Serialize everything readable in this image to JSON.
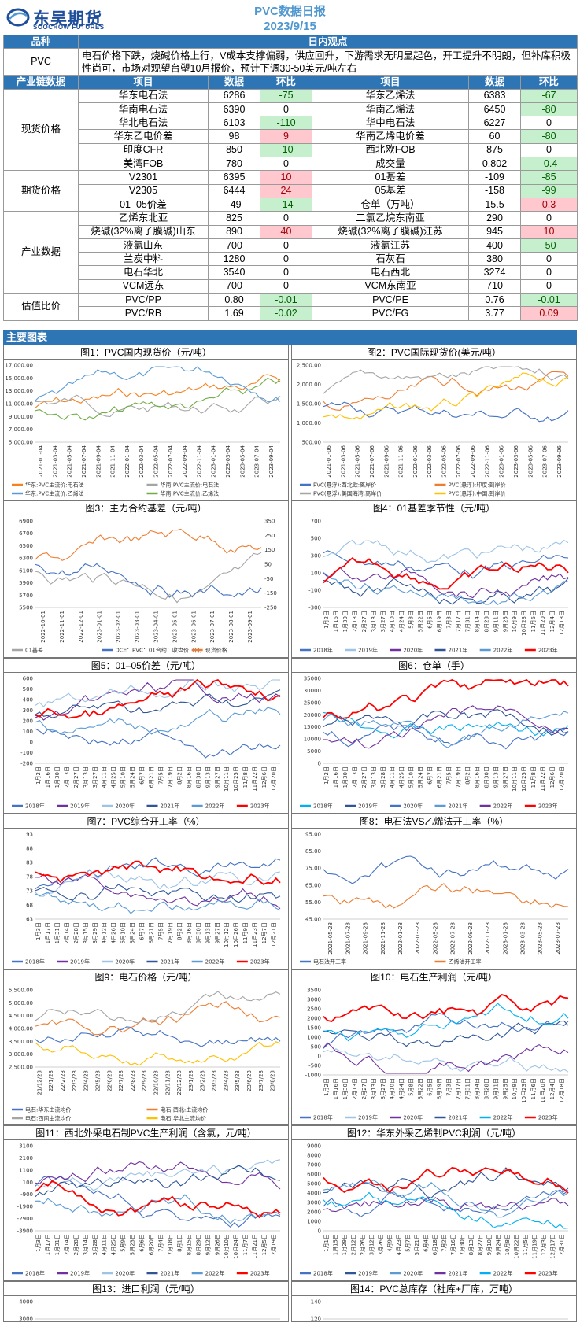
{
  "header": {
    "logo_cn": "东吴期货",
    "logo_en": "SOOCHOW FUTURES",
    "title": "PVC数据日报",
    "date": "2023/9/15"
  },
  "colors": {
    "brand": "#1f4e9a",
    "bar": "#2e75b6",
    "title": "#4f97cf",
    "up": "#ffc7ce",
    "down": "#c6efce"
  },
  "summary": {
    "col1": "品种",
    "col2": "日内观点",
    "product": "PVC",
    "view": "电石价格下跌，烧碱价格上行，V成本支撑偏弱，供应回升，下游需求无明显起色，开工提升不明朗，但补库积极性尚可，市场对观望台塑10月报价，预计下调30-50美元/吨左右"
  },
  "table": {
    "headers": [
      "产业链数据",
      "项目",
      "数据",
      "环比",
      "项目",
      "数据",
      "环比"
    ],
    "groups": [
      {
        "name": "现货价格",
        "rows": [
          [
            "华东电石法",
            "6286",
            "-75",
            "华东乙烯法",
            "6383",
            "-67"
          ],
          [
            "华南电石法",
            "6390",
            "0",
            "华南乙烯法",
            "6450",
            "-80"
          ],
          [
            "华北电石法",
            "6103",
            "-110",
            "华中电石法",
            "6227",
            "0"
          ],
          [
            "华东乙电价差",
            "98",
            "9",
            "华南乙烯电价差",
            "60",
            "-80"
          ],
          [
            "印度CFR",
            "850",
            "-10",
            "西北欧FOB",
            "875",
            "0"
          ],
          [
            "美湾FOB",
            "780",
            "0",
            "成交量",
            "0.802",
            "-0.4"
          ]
        ]
      },
      {
        "name": "期货价格",
        "rows": [
          [
            "V2301",
            "6395",
            "10",
            "01基差",
            "-109",
            "-85"
          ],
          [
            "V2305",
            "6444",
            "24",
            "05基差",
            "-158",
            "-99"
          ],
          [
            "01–05价差",
            "-49",
            "-14",
            "仓单（万吨）",
            "15.5",
            "0.3"
          ]
        ]
      },
      {
        "name": "产业数据",
        "rows": [
          [
            "乙烯东北亚",
            "825",
            "0",
            "二氯乙烷东南亚",
            "290",
            "0"
          ],
          [
            "烧碱(32%离子膜碱)山东",
            "890",
            "40",
            "烧碱(32%离子膜碱)江苏",
            "945",
            "10"
          ],
          [
            "液氯山东",
            "700",
            "0",
            "液氯江苏",
            "400",
            "-50"
          ],
          [
            "兰炭中料",
            "1280",
            "0",
            "石灰石",
            "380",
            "0"
          ],
          [
            "电石华北",
            "3540",
            "0",
            "电石西北",
            "3274",
            "0"
          ],
          [
            "VCM远东",
            "700",
            "0",
            "VCM东南亚",
            "710",
            "0"
          ]
        ]
      },
      {
        "name": "估值比价",
        "rows": [
          [
            "PVC/PP",
            "0.80",
            "-0.01",
            "PVC/PE",
            "0.76",
            "-0.01"
          ],
          [
            "PVC/RB",
            "1.69",
            "-0.02",
            "PVC/FG",
            "3.77",
            "0.09"
          ]
        ]
      }
    ],
    "cell_colors": {
      "现货价格": [
        [
          "down",
          "down"
        ],
        [
          "",
          "down"
        ],
        [
          "down",
          ""
        ],
        [
          "up",
          "down"
        ],
        [
          "down",
          ""
        ],
        [
          "",
          "down"
        ]
      ],
      "期货价格": [
        [
          "up",
          "down"
        ],
        [
          "up",
          "down"
        ],
        [
          "down",
          "up"
        ]
      ],
      "产业数据": [
        [
          "",
          ""
        ],
        [
          "up",
          "up"
        ],
        [
          "",
          "down"
        ],
        [
          "",
          ""
        ],
        [
          "",
          ""
        ],
        [
          "",
          ""
        ]
      ],
      "估值比价": [
        [
          "down",
          "down"
        ],
        [
          "down",
          "up"
        ]
      ]
    }
  },
  "section_title": "主要图表",
  "charts": [
    {
      "title": "图1：PVC国内现货价（元/吨）",
      "yticks": [
        "17,000.00",
        "15,000.00",
        "13,000.00",
        "11,000.00",
        "9,000.00",
        "7,000.00",
        "5,000.00"
      ],
      "xticks": [
        "2021-01-04",
        "2021-03-04",
        "2021-05-04",
        "2021-07-04",
        "2021-09-04",
        "2021-11-04",
        "2022-01-04",
        "2022-03-04",
        "2022-05-04",
        "2022-07-04",
        "2022-09-04",
        "2022-11-04",
        "2023-01-04",
        "2023-03-04",
        "2023-05-04",
        "2023-07-04",
        "2023-09-04"
      ],
      "legend": [
        "华东:PVC主流价:电石法",
        "华南:PVC主流价:电石法",
        "华东:PVC主流价:乙烯法",
        "华南:PVC主流价:乙烯法"
      ],
      "legend_colors": [
        "#f58220",
        "#a5a5a5",
        "#5b9bd5",
        "#70ad47"
      ]
    },
    {
      "title": "图2：PVC国际现货价(美元/吨）",
      "yticks": [
        "2,500.00",
        "2,000.00",
        "1,500.00",
        "1,000.00",
        "500.00"
      ],
      "xticks": [
        "2021-01-06",
        "2021-03-06",
        "2021-05-06",
        "2021-07-06",
        "2021-09-06",
        "2021-11-06",
        "2022-01-06",
        "2022-03-06",
        "2022-05-06",
        "2022-07-06",
        "2022-09-06",
        "2022-11-06",
        "2023-01-06",
        "2023-03-06",
        "2023-05-06",
        "2023-07-06",
        "2023-09-06"
      ],
      "legend": [
        "PVC(悬浮):西北欧:离岸价",
        "PVC(悬浮):印度:到岸价",
        "PVC(悬浮):美国海湾:离岸价",
        "PVC(悬浮):中国:到岸价"
      ],
      "legend_colors": [
        "#4472c4",
        "#ed7d31",
        "#a5a5a5",
        "#ffc000"
      ]
    },
    {
      "title": "图3：主力合约基差（元/吨）",
      "yticks": [
        "6900",
        "6700",
        "6500",
        "6300",
        "6100",
        "5900",
        "5700",
        "5500"
      ],
      "yticks_right": [
        "350",
        "250",
        "150",
        "50",
        "-50",
        "-150",
        "-250"
      ],
      "xticks": [
        "2022-10-01",
        "2022-11-01",
        "2022-12-01",
        "2023-01-01",
        "2023-02-01",
        "2023-03-01",
        "2023-04-01",
        "2023-05-01",
        "2023-06-01",
        "2023-07-01",
        "2023-08-01",
        "2023-09-01"
      ],
      "legend": [
        "01基差",
        "DCE：PVC：01合约：收盘价（日）",
        "现货价格"
      ],
      "legend_colors": [
        "#a5a5a5",
        "#4472c4",
        "#ed7d31"
      ]
    },
    {
      "title": "图4：01基差季节性（元/吨）",
      "yticks": [
        "700",
        "500",
        "300",
        "100",
        "-100",
        "-300"
      ],
      "xticks": [
        "1月2日",
        "1月16日",
        "1月30日",
        "2月13日",
        "2月27日",
        "3月13日",
        "3月27日",
        "4月10日",
        "4月24日",
        "5月8日",
        "5月22日",
        "6月5日",
        "6月19日",
        "7月3日",
        "7月17日",
        "7月31日",
        "8月14日",
        "8月28日",
        "9月11日",
        "9月25日",
        "10月9日",
        "10月23日",
        "11月6日",
        "11月20日",
        "12月4日",
        "12月18日"
      ],
      "legend": [
        "2018年",
        "2019年",
        "2020年",
        "2021年",
        "2022年",
        "2023年"
      ],
      "legend_colors": [
        "#4472c4",
        "#9dc3e6",
        "#7030a0",
        "#2f5597",
        "#5b9bd5",
        "#ff0000"
      ]
    },
    {
      "title": "图5：01–05价差（元/吨）",
      "yticks": [
        "600",
        "500",
        "400",
        "300",
        "200",
        "100",
        "0",
        "-100",
        "-200"
      ],
      "xticks": [
        "1月2日",
        "1月16日",
        "1月30日",
        "2月13日",
        "2月27日",
        "3月13日",
        "3月27日",
        "4月11日",
        "4月25日",
        "5月10日",
        "5月24日",
        "6月7日",
        "6月21日",
        "7月5日",
        "7月19日",
        "8月2日",
        "8月16日",
        "8月30日",
        "9月13日",
        "9月27日",
        "10月11日",
        "10月25日",
        "11月8日",
        "11月22日",
        "12月6日",
        "12月20日"
      ],
      "legend": [
        "2018年",
        "2019年",
        "2020年",
        "2021年",
        "2022年",
        "2023年"
      ],
      "legend_colors": [
        "#4472c4",
        "#7030a0",
        "#9dc3e6",
        "#2f5597",
        "#5b9bd5",
        "#ff0000"
      ]
    },
    {
      "title": "图6：仓单（手）",
      "yticks": [
        "35000",
        "30000",
        "25000",
        "20000",
        "15000",
        "10000",
        "5000",
        "0"
      ],
      "xticks": [
        "1月2日",
        "1月16日",
        "1月30日",
        "2月13日",
        "2月27日",
        "3月13日",
        "3月28日",
        "4月11日",
        "4月25日",
        "5月10日",
        "5月24日",
        "6月7日",
        "6月21日",
        "7月5日",
        "7月19日",
        "8月2日",
        "8月16日",
        "8月30日",
        "9月13日",
        "9月27日",
        "10月11日",
        "10月25日",
        "11月8日",
        "11月22日",
        "12月6日",
        "12月20日"
      ],
      "legend": [
        "2018年",
        "2019年",
        "2020年",
        "2021年",
        "2022年",
        "2023年"
      ],
      "legend_colors": [
        "#00b0f0",
        "#2f5597",
        "#4472c4",
        "#5b9bd5",
        "#7030a0",
        "#ff0000"
      ]
    },
    {
      "title": "图7：PVC综合开工率（%）",
      "yticks": [
        "93",
        "88",
        "83",
        "78",
        "73",
        "68",
        "63"
      ],
      "xticks": [
        "1月3日",
        "1月17日",
        "1月31日",
        "2月14日",
        "2月28日",
        "3月15日",
        "3月29日",
        "4月12日",
        "4月26日",
        "5月10日",
        "5月24日",
        "6月7日",
        "6月21日",
        "7月5日",
        "7月19日",
        "8月2日",
        "8月16日",
        "8月30日",
        "9月13日",
        "9月27日",
        "10月12日",
        "10月26日",
        "11月9日",
        "11月23日",
        "12月7日",
        "12月21日"
      ],
      "legend": [
        "2018年",
        "2019年",
        "2020年",
        "2021年",
        "2022年",
        "2023年"
      ],
      "legend_colors": [
        "#4472c4",
        "#7030a0",
        "#9dc3e6",
        "#2f5597",
        "#5b9bd5",
        "#ff0000"
      ]
    },
    {
      "title": "图8：电石法VS乙烯法开工率（%）",
      "yticks": [
        "95.00",
        "85.00",
        "75.00",
        "65.00",
        "55.00",
        "45.00"
      ],
      "xticks": [
        "2021-05-28",
        "2021-07-28",
        "2021-09-28",
        "2021-11-28",
        "2022-01-28",
        "2022-03-28",
        "2022-05-28",
        "2022-07-28",
        "2022-09-28",
        "2022-11-28",
        "2023-01-28",
        "2023-03-28",
        "2023-05-28",
        "2023-07-28"
      ],
      "legend": [
        "电石法开工率",
        "乙烯法开工率"
      ],
      "legend_colors": [
        "#4472c4",
        "#ed7d31"
      ]
    },
    {
      "title": "图9：电石价格（元/吨）",
      "yticks": [
        "5,500.00",
        "5,000.00",
        "4,500.00",
        "4,000.00",
        "3,500.00",
        "3,000.00",
        "2,500.00"
      ],
      "xticks": [
        "21/12/23",
        "22/1/23",
        "22/2/23",
        "22/3/23",
        "22/4/23",
        "22/5/23",
        "22/6/23",
        "22/7/23",
        "22/8/23",
        "22/9/23",
        "22/10/23",
        "22/11/23",
        "22/12/23",
        "23/1/23",
        "23/2/23",
        "23/3/23",
        "23/4/23",
        "23/5/23",
        "23/6/23",
        "23/7/23",
        "23/8/23"
      ],
      "legend": [
        "电石:华东主流均价",
        "电石:西北:主流均价",
        "电石:西南主流均价",
        "电石:华北主流均价"
      ],
      "legend_colors": [
        "#4472c4",
        "#ed7d31",
        "#a5a5a5",
        "#ffc000"
      ]
    },
    {
      "title": "图10：电石生产利润（元/吨）",
      "yticks": [
        "3500",
        "3000",
        "2500",
        "2000",
        "1500",
        "1000",
        "500",
        "0",
        "-500",
        "-1000"
      ],
      "xticks": [
        "1月2日",
        "1月16日",
        "1月30日",
        "2月13日",
        "2月27日",
        "3月13日",
        "3月27日",
        "4月10日",
        "4月24日",
        "5月8日",
        "5月22日",
        "6月5日",
        "6月19日",
        "7月3日",
        "7月17日",
        "7月31日",
        "8月14日",
        "8月28日",
        "9月11日",
        "9月25日",
        "10月9日",
        "10月23日",
        "11月6日",
        "11月20日",
        "12月4日",
        "12月18日"
      ],
      "legend": [
        "2018年",
        "2019年",
        "2020年",
        "2021年",
        "2022年",
        "2023年"
      ],
      "legend_colors": [
        "#4472c4",
        "#9dc3e6",
        "#7030a0",
        "#2f5597",
        "#00b0f0",
        "#ff0000"
      ]
    },
    {
      "title": "图11：西北外采电石制PVC生产利润（含氯，元/吨）",
      "yticks": [
        "3100",
        "2100",
        "1100",
        "100",
        "-900",
        "-1900",
        "-2900",
        "-3900"
      ],
      "xticks": [
        "1月3日",
        "1月17日",
        "1月31日",
        "2月14日",
        "2月28日",
        "3月14日",
        "3月28日",
        "4月11日",
        "4月25日",
        "5月9日",
        "5月23日",
        "6月6日",
        "6月20日",
        "7月4日",
        "7月18日",
        "8月1日",
        "8月15日",
        "8月29日",
        "9月12日",
        "9月26日",
        "10月10日",
        "10月24日",
        "11月7日",
        "11月21日",
        "12月5日",
        "12月19日"
      ],
      "legend": [
        "2018年",
        "2019年",
        "2020年",
        "2021年",
        "2022年",
        "2023年"
      ],
      "legend_colors": [
        "#4472c4",
        "#7030a0",
        "#9dc3e6",
        "#2f5597",
        "#5b9bd5",
        "#ff0000"
      ]
    },
    {
      "title": "图12：华东外采乙烯制PVC利润（元/吨）",
      "yticks": [
        "9000",
        "8000",
        "7000",
        "6000",
        "5000",
        "4000",
        "3000",
        "2000",
        "1000",
        "0"
      ],
      "xticks": [
        "1月1日",
        "1月15日",
        "1月29日",
        "2月12日",
        "2月26日",
        "3月12日",
        "3月26日",
        "4月9日",
        "4月23日",
        "5月7日",
        "5月21日",
        "6月4日",
        "6月18日",
        "7月2日",
        "7月16日",
        "7月30日",
        "8月13日",
        "8月27日",
        "9月10日",
        "9月24日",
        "10月8日",
        "10月22日",
        "11月5日",
        "11月19日",
        "12月3日",
        "12月17日",
        "12月31日"
      ],
      "legend": [
        "2018年",
        "2019年",
        "2020年",
        "2021年",
        "2022年",
        "2023年"
      ],
      "legend_colors": [
        "#4472c4",
        "#2f5597",
        "#5b9bd5",
        "#7030a0",
        "#00b0f0",
        "#ff0000"
      ]
    },
    {
      "title": "图13：进口利润（元/吨）",
      "yticks": [
        "4000",
        "3000"
      ]
    },
    {
      "title": "图14：PVC总库存（社库+厂库，万吨）",
      "yticks": [
        "140",
        "120"
      ]
    }
  ]
}
